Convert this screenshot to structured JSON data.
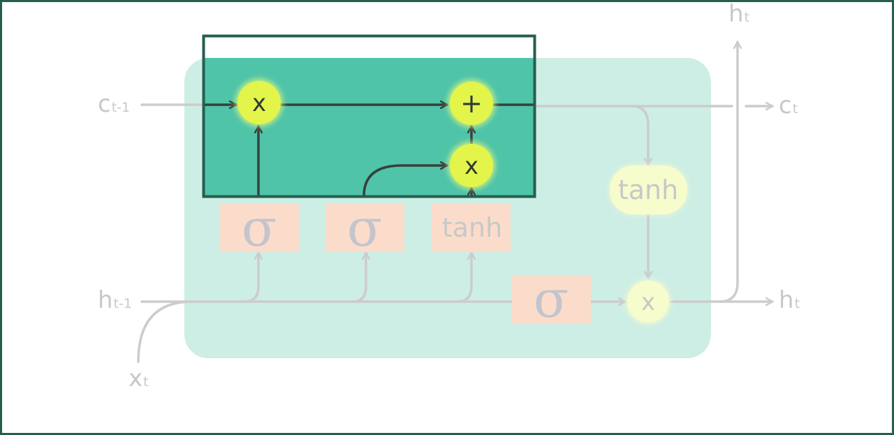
{
  "diagram": {
    "labels": {
      "c_prev": {
        "main": "c",
        "sub": "t-1"
      },
      "c_next": {
        "main": "c",
        "sub": "t"
      },
      "h_prev": {
        "main": "h",
        "sub": "t-1"
      },
      "h_next": {
        "main": "h",
        "sub": "t"
      },
      "h_top": {
        "main": "h",
        "sub": "t"
      },
      "x_in": {
        "main": "x",
        "sub": "t"
      }
    },
    "gates": {
      "forget": "σ",
      "input": "σ",
      "candidate": "tanh",
      "output": "σ",
      "cell_tanh": "tanh"
    },
    "ops": {
      "forget_mult": "x",
      "cell_add": "+",
      "input_mult": "x",
      "output_mult": "x"
    },
    "colors": {
      "highlight_fill": "#4fc4a8",
      "highlight_border": "#255e50",
      "cell_bg": "#cdeee5",
      "gate_bg": "#fbdccb",
      "op_active": "#e3f54a",
      "op_faded": "#f7fccd",
      "line_active": "#38403e",
      "line_faded": "#cccccc"
    }
  }
}
